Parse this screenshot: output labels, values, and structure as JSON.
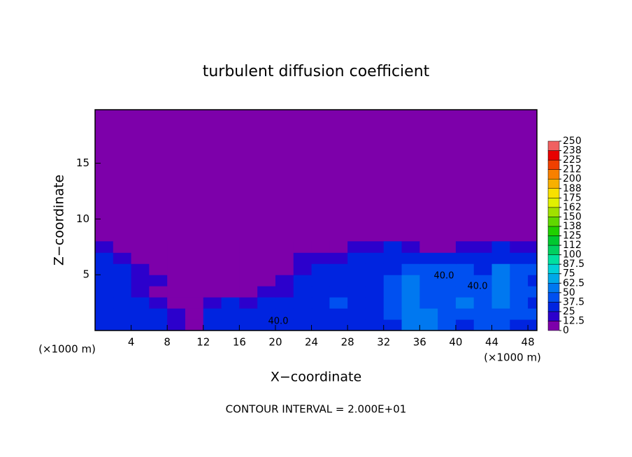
{
  "chart_data": {
    "type": "heatmap",
    "title": "turbulent diffusion coefficient",
    "xlabel": "X−coordinate",
    "ylabel": "Z−coordinate",
    "x_unit": "(×1000 m)",
    "y_unit": "(×1000 m)",
    "note": "CONTOUR INTERVAL = 2.000E+01",
    "annotations": [
      "40.0",
      "40.0",
      "40.0"
    ],
    "xlim": [
      0,
      49
    ],
    "ylim": [
      0,
      19.8
    ],
    "xticks": [
      4,
      8,
      12,
      16,
      20,
      24,
      28,
      32,
      36,
      40,
      44,
      48
    ],
    "yticks": [
      5,
      10,
      15
    ],
    "x": [
      1,
      3,
      5,
      7,
      9,
      11,
      13,
      15,
      17,
      19,
      21,
      23,
      25,
      27,
      29,
      31,
      33,
      35,
      37,
      39,
      41,
      43,
      45,
      47,
      49
    ],
    "y": [
      0.5,
      1.5,
      2.5,
      3.5,
      4.5,
      5.5,
      6.5,
      7.5
    ],
    "z": [
      [
        30,
        30,
        30,
        25,
        20,
        10,
        30,
        30,
        30,
        30,
        30,
        30,
        35,
        30,
        30,
        30,
        35,
        50,
        55,
        40,
        35,
        40,
        40,
        35,
        35
      ],
      [
        35,
        30,
        30,
        30,
        15,
        5,
        25,
        30,
        30,
        35,
        30,
        30,
        35,
        35,
        35,
        35,
        40,
        60,
        50,
        40,
        45,
        40,
        45,
        40,
        40
      ],
      [
        30,
        35,
        30,
        20,
        10,
        0,
        15,
        25,
        20,
        25,
        30,
        30,
        35,
        40,
        35,
        35,
        45,
        55,
        45,
        40,
        50,
        45,
        55,
        40,
        35
      ],
      [
        35,
        30,
        20,
        10,
        5,
        0,
        5,
        10,
        10,
        15,
        20,
        30,
        30,
        35,
        35,
        35,
        40,
        60,
        45,
        45,
        45,
        45,
        55,
        45,
        40
      ],
      [
        30,
        25,
        20,
        15,
        0,
        0,
        0,
        5,
        5,
        10,
        15,
        25,
        30,
        30,
        30,
        35,
        40,
        55,
        45,
        40,
        40,
        40,
        50,
        40,
        35
      ],
      [
        35,
        30,
        15,
        10,
        0,
        0,
        0,
        0,
        5,
        5,
        10,
        20,
        25,
        30,
        30,
        30,
        35,
        40,
        40,
        40,
        40,
        35,
        50,
        45,
        40
      ],
      [
        30,
        20,
        5,
        0,
        0,
        0,
        0,
        0,
        0,
        0,
        5,
        15,
        20,
        20,
        25,
        30,
        30,
        30,
        30,
        30,
        35,
        30,
        35,
        35,
        30
      ],
      [
        15,
        5,
        0,
        0,
        0,
        0,
        0,
        0,
        0,
        0,
        0,
        5,
        10,
        10,
        15,
        20,
        25,
        20,
        10,
        5,
        15,
        20,
        25,
        20,
        15
      ]
    ],
    "colorbar_ticks": [
      0,
      12.5,
      25,
      37.5,
      50,
      62.5,
      75,
      87.5,
      100,
      112,
      125,
      138,
      150,
      162,
      175,
      188,
      200,
      212,
      225,
      238,
      250
    ],
    "colors": [
      "#7d00aa",
      "#2c00cc",
      "#0024e0",
      "#0050f0",
      "#0078f0",
      "#00a8e8",
      "#00d0d8",
      "#00e0a0",
      "#00d060",
      "#00c830",
      "#20d000",
      "#60d800",
      "#a0e000",
      "#e0f000",
      "#f8e000",
      "#f8b000",
      "#f88000",
      "#f04000",
      "#e80000",
      "#f06060"
    ]
  }
}
